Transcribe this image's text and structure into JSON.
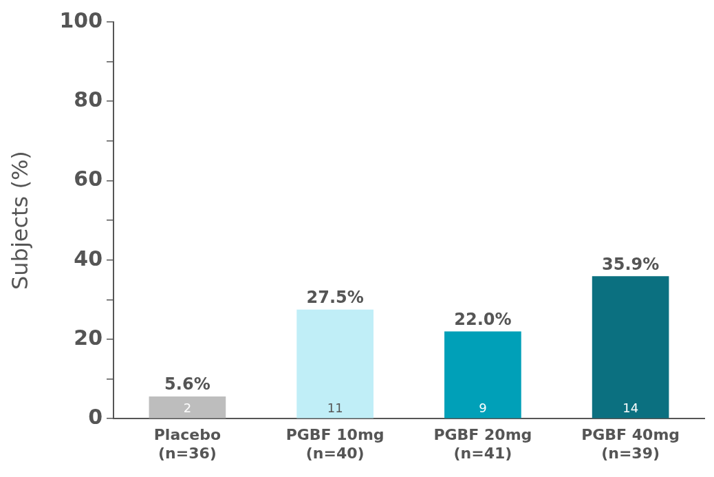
{
  "chart_data": {
    "type": "bar",
    "ylabel": "Subjects (%)",
    "categories": [
      "Placebo\n(n=36)",
      "PGBF 10mg\n(n=40)",
      "PGBF 20mg\n(n=41)",
      "PGBF 40mg\n(n=39)"
    ],
    "values": [
      5.6,
      27.5,
      22.0,
      35.9
    ],
    "colors": [
      "#bdbdbd",
      "#c0eef7",
      "#00a0b8",
      "#0b7080"
    ],
    "value_labels": [
      "5.6%",
      "27.5%",
      "22.0%",
      "35.9%"
    ],
    "ylim": [
      0,
      100
    ],
    "yticks": [
      0,
      {
        "value": 10,
        "label": null
      },
      20,
      {
        "value": 30,
        "label": null
      },
      40,
      {
        "value": 50,
        "label": null
      },
      60,
      {
        "value": 70,
        "label": null
      },
      80,
      {
        "value": 90,
        "label": null
      },
      100
    ],
    "annotations": [
      "2",
      "11",
      "9",
      "14"
    ],
    "grid": false,
    "legend": false
  }
}
